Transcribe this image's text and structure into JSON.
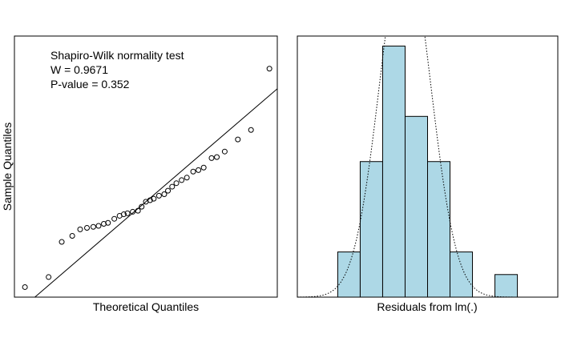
{
  "chart_data": [
    {
      "type": "scatter",
      "title": "",
      "xlabel": "Theoretical Quantiles",
      "ylabel": "Sample Quantiles",
      "xlim": [
        -2.5,
        2.5
      ],
      "ylim": [
        -2.2,
        3.0
      ],
      "grid": false,
      "annotation": [
        "Shapiro-Wilk normality test",
        "W = 0.9671",
        "P-value = 0.352"
      ],
      "points": [
        [
          -2.3,
          -2.0
        ],
        [
          -1.85,
          -1.8
        ],
        [
          -1.6,
          -1.1
        ],
        [
          -1.4,
          -0.98
        ],
        [
          -1.25,
          -0.85
        ],
        [
          -1.12,
          -0.82
        ],
        [
          -1.0,
          -0.8
        ],
        [
          -0.9,
          -0.78
        ],
        [
          -0.8,
          -0.74
        ],
        [
          -0.72,
          -0.72
        ],
        [
          -0.6,
          -0.64
        ],
        [
          -0.5,
          -0.58
        ],
        [
          -0.42,
          -0.55
        ],
        [
          -0.35,
          -0.53
        ],
        [
          -0.25,
          -0.5
        ],
        [
          -0.15,
          -0.48
        ],
        [
          -0.08,
          -0.4
        ],
        [
          0.0,
          -0.3
        ],
        [
          0.08,
          -0.27
        ],
        [
          0.15,
          -0.24
        ],
        [
          0.25,
          -0.18
        ],
        [
          0.35,
          -0.15
        ],
        [
          0.42,
          -0.08
        ],
        [
          0.5,
          0.0
        ],
        [
          0.58,
          0.07
        ],
        [
          0.68,
          0.13
        ],
        [
          0.78,
          0.18
        ],
        [
          0.9,
          0.3
        ],
        [
          1.0,
          0.33
        ],
        [
          1.1,
          0.38
        ],
        [
          1.25,
          0.57
        ],
        [
          1.35,
          0.59
        ],
        [
          1.5,
          0.7
        ],
        [
          1.75,
          0.94
        ],
        [
          2.0,
          1.13
        ],
        [
          2.35,
          2.35
        ]
      ],
      "reference_line": {
        "intercept": -0.3,
        "slope": 0.9
      }
    },
    {
      "type": "histogram",
      "title": "",
      "xlabel": "Residuals from lm(.)",
      "ylabel": "",
      "xlim": [
        -2.4,
        3.4
      ],
      "ylim": [
        0,
        0.52
      ],
      "grid": false,
      "bar_color": "#ADD8E6",
      "bins": [
        {
          "from": -1.5,
          "to": -1.0,
          "density": 0.09
        },
        {
          "from": -1.0,
          "to": -0.5,
          "density": 0.27
        },
        {
          "from": -0.5,
          "to": 0.0,
          "density": 0.5
        },
        {
          "from": 0.0,
          "to": 0.5,
          "density": 0.36
        },
        {
          "from": 0.5,
          "to": 1.0,
          "density": 0.27
        },
        {
          "from": 1.0,
          "to": 1.5,
          "density": 0.09
        },
        {
          "from": 1.5,
          "to": 2.0,
          "density": 0.0
        },
        {
          "from": 2.0,
          "to": 2.5,
          "density": 0.045
        }
      ],
      "density_curve": {
        "mean": 0.0,
        "sd": 0.57,
        "line_style": "dotted"
      }
    }
  ]
}
